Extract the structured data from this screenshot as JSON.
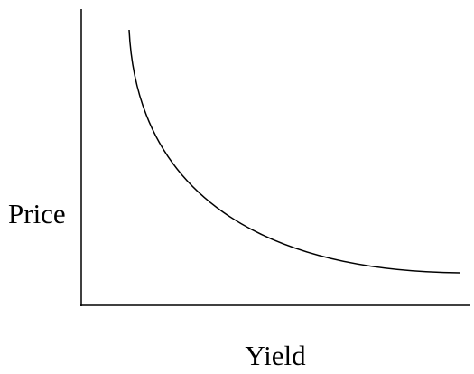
{
  "axes": {
    "y_label": "Price",
    "x_label": "Yield"
  }
}
